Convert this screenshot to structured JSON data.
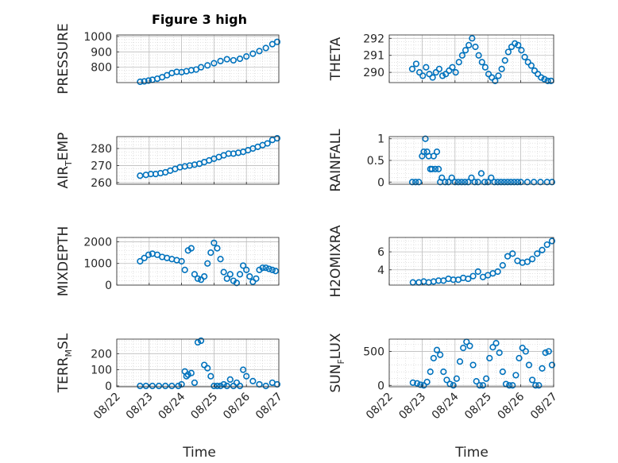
{
  "figure": {
    "title": "Figure 3 high",
    "xlabel": "Time"
  },
  "chart_data": [
    {
      "type": "scatter",
      "panel": "top-left",
      "ylabel": {
        "main": "PRESSURE",
        "sub": "",
        "rest": ""
      },
      "xlim": [
        "08/22",
        "08/27"
      ],
      "ylim": [
        700,
        1010
      ],
      "xticks": [
        "08/22",
        "08/23",
        "08/24",
        "08/25",
        "08/26",
        "08/27"
      ],
      "yticks": [
        800,
        900,
        1000
      ],
      "series": [
        {
          "color": "#0072BD",
          "marker": "circle-open",
          "x": [
            0.72,
            0.85,
            0.98,
            1.1,
            1.25,
            1.4,
            1.55,
            1.7,
            1.85,
            2.0,
            2.15,
            2.3,
            2.45,
            2.6,
            2.8,
            3.0,
            3.2,
            3.4,
            3.6,
            3.8,
            4.0,
            4.2,
            4.4,
            4.6,
            4.8,
            4.95
          ],
          "y": [
            705,
            708,
            713,
            718,
            725,
            735,
            748,
            762,
            770,
            768,
            774,
            780,
            785,
            800,
            812,
            826,
            840,
            852,
            845,
            855,
            870,
            888,
            905,
            925,
            950,
            965
          ]
        }
      ]
    },
    {
      "type": "scatter",
      "panel": "top-right",
      "ylabel": {
        "main": "THETA",
        "sub": "",
        "rest": ""
      },
      "xlim": [
        "08/22",
        "08/27"
      ],
      "ylim": [
        289.4,
        292.2
      ],
      "xticks": [
        "08/22",
        "08/23",
        "08/24",
        "08/25",
        "08/26",
        "08/27"
      ],
      "yticks": [
        290,
        291,
        292
      ],
      "series": [
        {
          "color": "#0072BD",
          "marker": "circle-open",
          "x": [
            0.7,
            0.82,
            0.92,
            1.02,
            1.12,
            1.22,
            1.32,
            1.42,
            1.52,
            1.62,
            1.72,
            1.82,
            1.92,
            2.02,
            2.12,
            2.22,
            2.32,
            2.42,
            2.52,
            2.62,
            2.72,
            2.82,
            2.92,
            3.02,
            3.12,
            3.22,
            3.32,
            3.42,
            3.52,
            3.62,
            3.72,
            3.82,
            3.92,
            4.02,
            4.12,
            4.22,
            4.32,
            4.42,
            4.52,
            4.62,
            4.72,
            4.82,
            4.92
          ],
          "y": [
            290.2,
            290.5,
            290.0,
            289.8,
            290.3,
            289.9,
            289.7,
            290.0,
            290.2,
            289.8,
            289.9,
            290.1,
            290.3,
            290.0,
            290.6,
            291.0,
            291.3,
            291.6,
            292.0,
            291.5,
            291.0,
            290.6,
            290.3,
            289.9,
            289.7,
            289.5,
            289.8,
            290.2,
            290.7,
            291.2,
            291.5,
            291.7,
            291.6,
            291.3,
            290.9,
            290.6,
            290.4,
            290.1,
            289.9,
            289.7,
            289.6,
            289.5,
            289.5
          ]
        }
      ]
    },
    {
      "type": "scatter",
      "panel": "second-left",
      "ylabel": {
        "main": "AIR",
        "sub": "T",
        "rest": "EMP"
      },
      "xlim": [
        "08/22",
        "08/27"
      ],
      "ylim": [
        259,
        287
      ],
      "xticks": [
        "08/22",
        "08/23",
        "08/24",
        "08/25",
        "08/26",
        "08/27"
      ],
      "yticks": [
        260,
        270,
        280
      ],
      "series": [
        {
          "color": "#0072BD",
          "marker": "circle-open",
          "x": [
            0.72,
            0.9,
            1.05,
            1.2,
            1.35,
            1.5,
            1.65,
            1.8,
            1.95,
            2.1,
            2.25,
            2.4,
            2.55,
            2.7,
            2.85,
            3.0,
            3.15,
            3.3,
            3.45,
            3.6,
            3.75,
            3.9,
            4.05,
            4.2,
            4.35,
            4.5,
            4.65,
            4.8,
            4.95
          ],
          "y": [
            264,
            264.5,
            265,
            265,
            265.5,
            266,
            267,
            268,
            269,
            269.5,
            270,
            270.5,
            271,
            272,
            273,
            274,
            275,
            276,
            277,
            277,
            277.5,
            278,
            279,
            280,
            281,
            282,
            283,
            285,
            286
          ]
        }
      ]
    },
    {
      "type": "scatter",
      "panel": "second-right",
      "ylabel": {
        "main": "RAINFALL",
        "sub": "",
        "rest": ""
      },
      "xlim": [
        "08/22",
        "08/27"
      ],
      "ylim": [
        -0.05,
        1.05
      ],
      "xticks": [
        "08/22",
        "08/23",
        "08/24",
        "08/25",
        "08/26",
        "08/27"
      ],
      "yticks": [
        0,
        0.5,
        1
      ],
      "series": [
        {
          "color": "#0072BD",
          "marker": "circle-open",
          "x": [
            0.7,
            0.8,
            0.9,
            1.0,
            1.05,
            1.1,
            1.15,
            1.2,
            1.25,
            1.3,
            1.35,
            1.4,
            1.45,
            1.5,
            1.55,
            1.6,
            1.7,
            1.8,
            1.9,
            2.0,
            2.1,
            2.2,
            2.3,
            2.4,
            2.5,
            2.6,
            2.7,
            2.8,
            2.9,
            3.0,
            3.1,
            3.2,
            3.3,
            3.4,
            3.5,
            3.6,
            3.7,
            3.8,
            3.9,
            4.0,
            4.2,
            4.4,
            4.6,
            4.8,
            4.95
          ],
          "y": [
            0,
            0,
            0,
            0.6,
            0.7,
            1.0,
            0.7,
            0.6,
            0.3,
            0.3,
            0.6,
            0.3,
            0.7,
            0.3,
            0,
            0.1,
            0,
            0,
            0.1,
            0,
            0,
            0,
            0,
            0,
            0.1,
            0,
            0,
            0.2,
            0,
            0,
            0.1,
            0,
            0,
            0,
            0,
            0,
            0,
            0,
            0,
            0,
            0,
            0,
            0,
            0,
            0
          ]
        }
      ]
    },
    {
      "type": "scatter",
      "panel": "third-left",
      "ylabel": {
        "main": "MIXDEPTH",
        "sub": "",
        "rest": ""
      },
      "xlim": [
        "08/22",
        "08/27"
      ],
      "ylim": [
        0,
        2200
      ],
      "xticks": [
        "08/22",
        "08/23",
        "08/24",
        "08/25",
        "08/26",
        "08/27"
      ],
      "yticks": [
        0,
        1000,
        2000
      ],
      "series": [
        {
          "color": "#0072BD",
          "marker": "circle-open",
          "x": [
            0.72,
            0.85,
            0.98,
            1.1,
            1.25,
            1.4,
            1.55,
            1.7,
            1.85,
            2.0,
            2.1,
            2.2,
            2.3,
            2.4,
            2.5,
            2.6,
            2.7,
            2.8,
            2.9,
            3.0,
            3.1,
            3.2,
            3.3,
            3.4,
            3.5,
            3.6,
            3.7,
            3.8,
            3.9,
            4.0,
            4.1,
            4.2,
            4.3,
            4.4,
            4.5,
            4.6,
            4.7,
            4.8,
            4.9
          ],
          "y": [
            1100,
            1250,
            1400,
            1450,
            1400,
            1300,
            1250,
            1200,
            1150,
            1100,
            700,
            1600,
            1700,
            500,
            300,
            250,
            400,
            1000,
            1500,
            1950,
            1700,
            1200,
            600,
            300,
            500,
            200,
            100,
            500,
            900,
            700,
            400,
            150,
            300,
            700,
            800,
            800,
            750,
            700,
            650
          ]
        }
      ]
    },
    {
      "type": "scatter",
      "panel": "third-right",
      "ylabel": {
        "main": "H2OMIXRA",
        "sub": "",
        "rest": ""
      },
      "xlim": [
        "08/22",
        "08/27"
      ],
      "ylim": [
        2.3,
        7.6
      ],
      "xticks": [
        "08/22",
        "08/23",
        "08/24",
        "08/25",
        "08/26",
        "08/27"
      ],
      "yticks": [
        4,
        6
      ],
      "series": [
        {
          "color": "#0072BD",
          "marker": "circle-open",
          "x": [
            0.72,
            0.9,
            1.05,
            1.2,
            1.35,
            1.5,
            1.65,
            1.8,
            1.95,
            2.1,
            2.25,
            2.4,
            2.55,
            2.7,
            2.85,
            3.0,
            3.15,
            3.3,
            3.45,
            3.6,
            3.75,
            3.9,
            4.05,
            4.2,
            4.35,
            4.5,
            4.65,
            4.8,
            4.95
          ],
          "y": [
            2.6,
            2.6,
            2.7,
            2.6,
            2.7,
            2.8,
            2.8,
            3.0,
            2.9,
            2.9,
            3.1,
            3.0,
            3.3,
            3.8,
            3.2,
            3.4,
            3.6,
            3.8,
            4.5,
            5.5,
            5.8,
            5.0,
            4.8,
            4.9,
            5.2,
            5.8,
            6.2,
            6.8,
            7.2
          ]
        }
      ]
    },
    {
      "type": "scatter",
      "panel": "bottom-left",
      "ylabel": {
        "main": "TERR",
        "sub": "M",
        "rest": "SL"
      },
      "xlim": [
        "08/22",
        "08/27"
      ],
      "ylim": [
        -5,
        290
      ],
      "xticks": [
        "08/22",
        "08/23",
        "08/24",
        "08/25",
        "08/26",
        "08/27"
      ],
      "yticks": [
        0,
        100,
        200
      ],
      "series": [
        {
          "color": "#0072BD",
          "marker": "circle-open",
          "x": [
            0.72,
            0.9,
            1.1,
            1.3,
            1.5,
            1.7,
            1.9,
            2.0,
            2.1,
            2.15,
            2.2,
            2.3,
            2.4,
            2.5,
            2.6,
            2.7,
            2.8,
            2.9,
            3.0,
            3.1,
            3.2,
            3.3,
            3.4,
            3.5,
            3.6,
            3.7,
            3.8,
            3.9,
            4.0,
            4.2,
            4.4,
            4.6,
            4.8,
            4.95
          ],
          "y": [
            0,
            0,
            0,
            0,
            0,
            0,
            0,
            10,
            90,
            60,
            70,
            80,
            20,
            270,
            280,
            130,
            110,
            60,
            0,
            0,
            0,
            10,
            0,
            40,
            0,
            20,
            0,
            100,
            60,
            30,
            10,
            0,
            20,
            10
          ]
        }
      ]
    },
    {
      "type": "scatter",
      "panel": "bottom-right",
      "ylabel": {
        "main": "SUN",
        "sub": "F",
        "rest": "LUX"
      },
      "xlim": [
        "08/22",
        "08/27"
      ],
      "ylim": [
        -20,
        680
      ],
      "xticks": [
        "08/22",
        "08/23",
        "08/24",
        "08/25",
        "08/26",
        "08/27"
      ],
      "yticks": [
        0,
        500
      ],
      "series": [
        {
          "color": "#0072BD",
          "marker": "circle-open",
          "x": [
            0.72,
            0.85,
            0.95,
            1.05,
            1.15,
            1.25,
            1.35,
            1.45,
            1.55,
            1.65,
            1.75,
            1.85,
            1.95,
            2.05,
            2.15,
            2.25,
            2.35,
            2.45,
            2.55,
            2.65,
            2.75,
            2.85,
            2.95,
            3.05,
            3.15,
            3.25,
            3.35,
            3.45,
            3.55,
            3.65,
            3.75,
            3.85,
            3.95,
            4.05,
            4.15,
            4.25,
            4.35,
            4.45,
            4.55,
            4.65,
            4.75,
            4.85,
            4.95
          ],
          "y": [
            40,
            30,
            10,
            0,
            50,
            200,
            400,
            520,
            450,
            200,
            80,
            20,
            0,
            100,
            350,
            550,
            640,
            580,
            300,
            60,
            0,
            0,
            100,
            400,
            560,
            620,
            480,
            200,
            20,
            0,
            0,
            150,
            400,
            550,
            500,
            300,
            80,
            0,
            0,
            250,
            480,
            500,
            300
          ]
        }
      ]
    }
  ]
}
